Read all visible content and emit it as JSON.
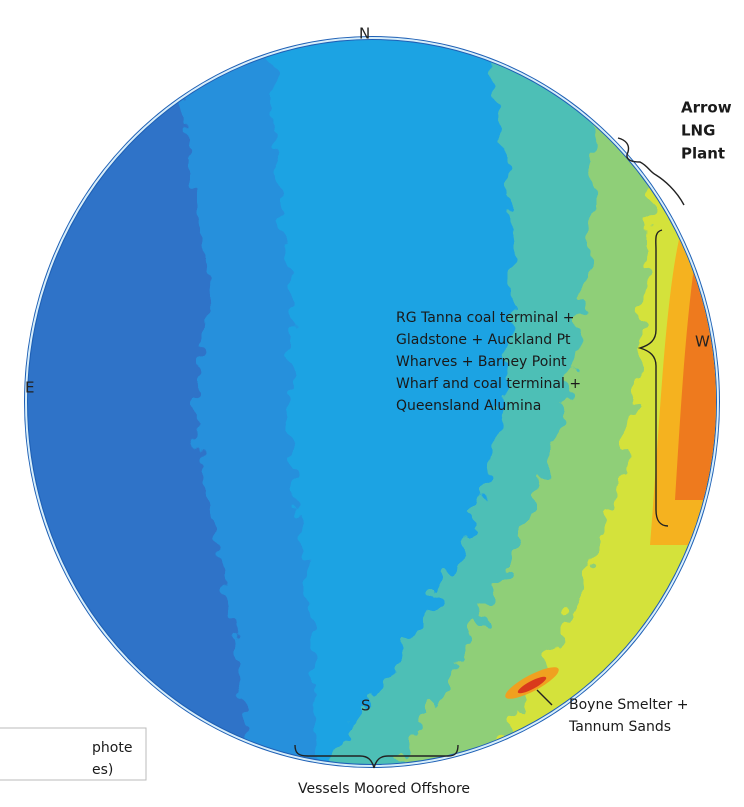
{
  "directions": {
    "north": "N",
    "east": "E",
    "west": "W",
    "south": "S"
  },
  "annotations": {
    "arrow_lng": [
      "Arrow",
      "LNG",
      "Plant"
    ],
    "terminals": [
      "RG Tanna coal terminal +",
      "Gladstone + Auckland Pt",
      "Wharves + Barney Point",
      "Wharf and coal terminal +",
      "Queensland Alumina"
    ],
    "boyne": [
      "Boyne Smelter +",
      "Tannum Sands"
    ],
    "vessels": "Vessels Moored Offshore"
  },
  "caption": [
    "phote",
    "es)"
  ]
}
